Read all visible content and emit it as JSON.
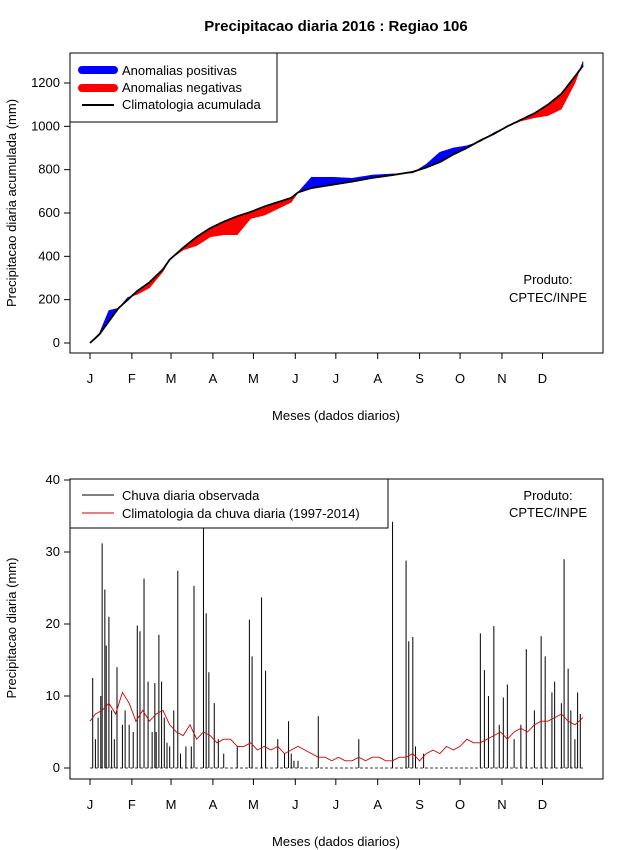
{
  "page_title": "Precipitacao diaria 2016 : Regiao 106",
  "chart_data": [
    {
      "type": "area",
      "title": "Precipitacao diaria 2016 : Regiao 106",
      "xlabel": "Meses (dados diarios)",
      "ylabel": "Precipitacao diaria acumulada (mm)",
      "xlim": [
        1,
        366
      ],
      "ylim": [
        0,
        1300
      ],
      "yticks": [
        0,
        200,
        400,
        600,
        800,
        1000,
        1200
      ],
      "xtick_days": [
        1,
        32,
        61,
        92,
        122,
        153,
        183,
        214,
        245,
        275,
        306,
        336
      ],
      "xtick_labels": [
        "J",
        "F",
        "M",
        "A",
        "M",
        "J",
        "J",
        "A",
        "S",
        "O",
        "N",
        "D"
      ],
      "legend": [
        "Anomalias positivas",
        "Anomalias negativas",
        "Climatologia acumulada"
      ],
      "legend_position": "top-left",
      "colors": {
        "positive": "#0000ff",
        "negative": "#ff0000",
        "climatology": "#000000"
      },
      "note": [
        "Produto:",
        "CPTEC/INPE"
      ],
      "climatology_cumulative": {
        "days": [
          1,
          8,
          15,
          22,
          29,
          36,
          45,
          55,
          60,
          70,
          80,
          90,
          100,
          110,
          120,
          130,
          140,
          150,
          155,
          165,
          180,
          195,
          210,
          225,
          240,
          250,
          260,
          270,
          280,
          290,
          300,
          310,
          320,
          330,
          340,
          350,
          360,
          366
        ],
        "values": [
          0,
          40,
          100,
          160,
          200,
          240,
          280,
          340,
          385,
          440,
          490,
          530,
          560,
          585,
          605,
          630,
          650,
          670,
          695,
          715,
          730,
          745,
          762,
          775,
          790,
          810,
          835,
          870,
          900,
          935,
          965,
          1000,
          1030,
          1060,
          1100,
          1150,
          1230,
          1280
        ]
      },
      "observed_cumulative": {
        "days": [
          1,
          8,
          15,
          22,
          29,
          36,
          45,
          55,
          60,
          70,
          80,
          90,
          100,
          110,
          120,
          130,
          140,
          150,
          155,
          165,
          180,
          195,
          210,
          225,
          240,
          250,
          260,
          270,
          280,
          290,
          300,
          310,
          320,
          330,
          340,
          350,
          360,
          366
        ],
        "values": [
          0,
          45,
          150,
          160,
          210,
          225,
          255,
          330,
          385,
          430,
          450,
          490,
          500,
          500,
          575,
          590,
          620,
          650,
          695,
          765,
          765,
          760,
          775,
          780,
          785,
          825,
          880,
          900,
          910,
          930,
          970,
          1000,
          1025,
          1040,
          1050,
          1080,
          1200,
          1300
        ]
      }
    },
    {
      "type": "line",
      "xlabel": "Meses (dados diarios)",
      "ylabel": "Precipitacao diaria (mm)",
      "xlim": [
        1,
        366
      ],
      "ylim": [
        0,
        40
      ],
      "yticks": [
        0,
        10,
        20,
        30,
        40
      ],
      "xtick_days": [
        1,
        32,
        61,
        92,
        122,
        153,
        183,
        214,
        245,
        275,
        306,
        336
      ],
      "xtick_labels": [
        "J",
        "F",
        "M",
        "A",
        "M",
        "J",
        "J",
        "A",
        "S",
        "O",
        "N",
        "D"
      ],
      "legend": [
        "Chuva diaria observada",
        "Climatologia da chuva diaria (1997-2014)"
      ],
      "legend_position": "top-left",
      "colors": {
        "observed": "#000000",
        "climatology": "#ff0000"
      },
      "note": [
        "Produto:",
        "CPTEC/INPE"
      ],
      "observed_daily_spikes": {
        "days": [
          3,
          5,
          7,
          9,
          10,
          12,
          13,
          15,
          17,
          19,
          21,
          25,
          27,
          30,
          33,
          36,
          38,
          41,
          44,
          47,
          49,
          50,
          52,
          54,
          56,
          58,
          60,
          63,
          66,
          68,
          72,
          76,
          78,
          85,
          87,
          89,
          93,
          96,
          100,
          110,
          119,
          121,
          128,
          131,
          140,
          145,
          148,
          150,
          152,
          155,
          170,
          200,
          225,
          235,
          237,
          240,
          242,
          248,
          290,
          293,
          296,
          300,
          304,
          307,
          310,
          315,
          320,
          324,
          330,
          335,
          338,
          343,
          345,
          350,
          352,
          355,
          357,
          360,
          362,
          364
        ],
        "values": [
          12.5,
          4,
          7,
          10,
          31.2,
          24.8,
          17,
          21,
          8,
          4,
          14,
          6,
          8,
          6,
          5,
          19.8,
          19,
          26.3,
          12,
          5,
          11.8,
          5,
          18.5,
          12,
          7,
          3.5,
          3,
          8,
          27.4,
          2,
          3,
          3,
          25.3,
          33.4,
          21.5,
          13.3,
          9,
          4,
          2,
          3,
          20.6,
          15.5,
          23.7,
          13.5,
          4,
          2,
          6.5,
          2,
          1,
          1,
          7.2,
          4,
          34.2,
          28.8,
          17.6,
          18.2,
          3,
          2,
          18.7,
          13.6,
          10,
          19.7,
          6,
          9.8,
          11.6,
          4,
          6,
          16.5,
          8,
          18.3,
          15.5,
          10.5,
          12,
          9,
          29,
          13.8,
          8,
          4,
          10.5,
          7.5
        ]
      },
      "climatology_daily": {
        "days": [
          1,
          5,
          10,
          15,
          20,
          25,
          30,
          35,
          40,
          45,
          50,
          55,
          60,
          65,
          70,
          75,
          80,
          85,
          90,
          95,
          100,
          105,
          110,
          115,
          120,
          125,
          130,
          135,
          140,
          145,
          150,
          155,
          160,
          165,
          170,
          175,
          180,
          185,
          190,
          195,
          200,
          205,
          210,
          215,
          220,
          225,
          230,
          235,
          240,
          245,
          250,
          255,
          260,
          265,
          270,
          275,
          280,
          285,
          290,
          295,
          300,
          305,
          310,
          315,
          320,
          325,
          330,
          335,
          340,
          345,
          350,
          355,
          360,
          366
        ],
        "values": [
          6.5,
          7.5,
          8,
          9,
          7.5,
          10.5,
          9,
          6.5,
          8,
          6.5,
          7.5,
          8,
          6,
          5,
          4.5,
          6,
          4,
          5,
          4.5,
          3.5,
          4,
          4,
          3,
          3,
          3.5,
          2.5,
          3,
          2.5,
          3,
          2,
          2.5,
          3,
          2.5,
          2,
          1.5,
          1.5,
          1,
          1.5,
          1,
          1,
          1.5,
          1,
          1.5,
          1.5,
          1,
          1,
          1.5,
          1.5,
          2,
          1,
          2,
          2.5,
          2,
          3,
          2.5,
          3,
          4,
          3.5,
          3.5,
          4,
          4.5,
          5,
          4,
          5,
          5.5,
          5,
          6,
          6.5,
          6.5,
          7,
          7.5,
          6.5,
          6,
          7
        ]
      }
    }
  ]
}
